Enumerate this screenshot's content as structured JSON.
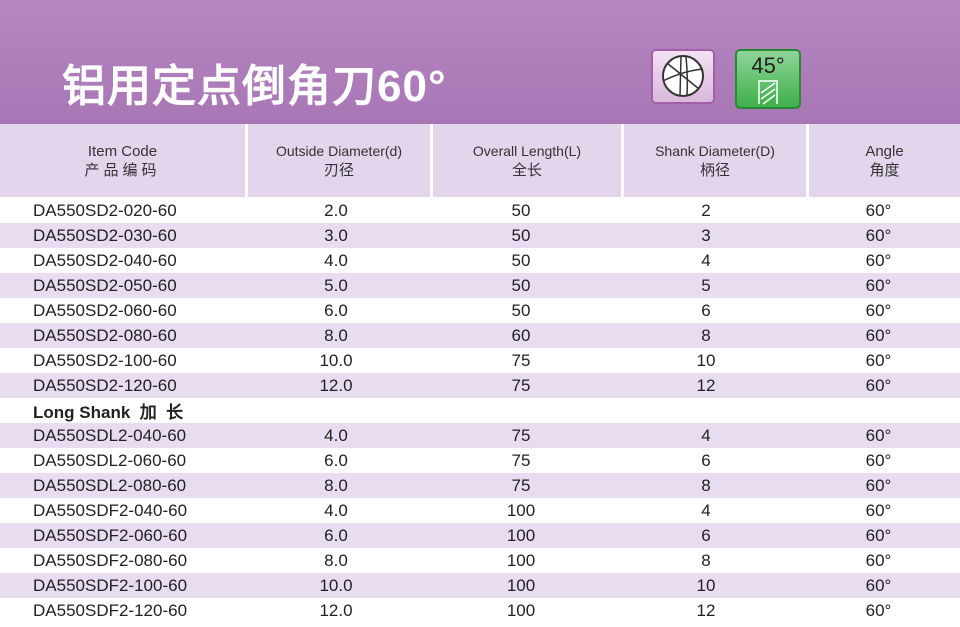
{
  "title": "铝用定点倒角刀60°",
  "icons": {
    "flute": "4-flute-cross-section-icon",
    "helix_label": "45°"
  },
  "colors": {
    "banner": "#b07cb8",
    "header": "#e3d5ec",
    "stripe": "#e8dcf0"
  },
  "headers": [
    {
      "en": "Item Code",
      "zh": "产品编码"
    },
    {
      "en": "Outside Diameter(d)",
      "zh": "刃径"
    },
    {
      "en": "Overall Length(L)",
      "zh": "全长"
    },
    {
      "en": "Shank Diameter(D)",
      "zh": "柄径"
    },
    {
      "en": "Angle",
      "zh": "角度"
    }
  ],
  "rows": [
    [
      "DA550SD2-020-60",
      "2.0",
      "50",
      "2",
      "60°"
    ],
    [
      "DA550SD2-030-60",
      "3.0",
      "50",
      "3",
      "60°"
    ],
    [
      "DA550SD2-040-60",
      "4.0",
      "50",
      "4",
      "60°"
    ],
    [
      "DA550SD2-050-60",
      "5.0",
      "50",
      "5",
      "60°"
    ],
    [
      "DA550SD2-060-60",
      "6.0",
      "50",
      "6",
      "60°"
    ],
    [
      "DA550SD2-080-60",
      "8.0",
      "60",
      "8",
      "60°"
    ],
    [
      "DA550SD2-100-60",
      "10.0",
      "75",
      "10",
      "60°"
    ],
    [
      "DA550SD2-120-60",
      "12.0",
      "75",
      "12",
      "60°"
    ],
    [
      "Long Shank  加  长",
      "",
      "",
      "",
      ""
    ],
    [
      "DA550SDL2-040-60",
      "4.0",
      "75",
      "4",
      "60°"
    ],
    [
      "DA550SDL2-060-60",
      "6.0",
      "75",
      "6",
      "60°"
    ],
    [
      "DA550SDL2-080-60",
      "8.0",
      "75",
      "8",
      "60°"
    ],
    [
      "DA550SDF2-040-60",
      "4.0",
      "100",
      "4",
      "60°"
    ],
    [
      "DA550SDF2-060-60",
      "6.0",
      "100",
      "6",
      "60°"
    ],
    [
      "DA550SDF2-080-60",
      "8.0",
      "100",
      "8",
      "60°"
    ],
    [
      "DA550SDF2-100-60",
      "10.0",
      "100",
      "10",
      "60°"
    ],
    [
      "DA550SDF2-120-60",
      "12.0",
      "100",
      "12",
      "60°"
    ]
  ]
}
